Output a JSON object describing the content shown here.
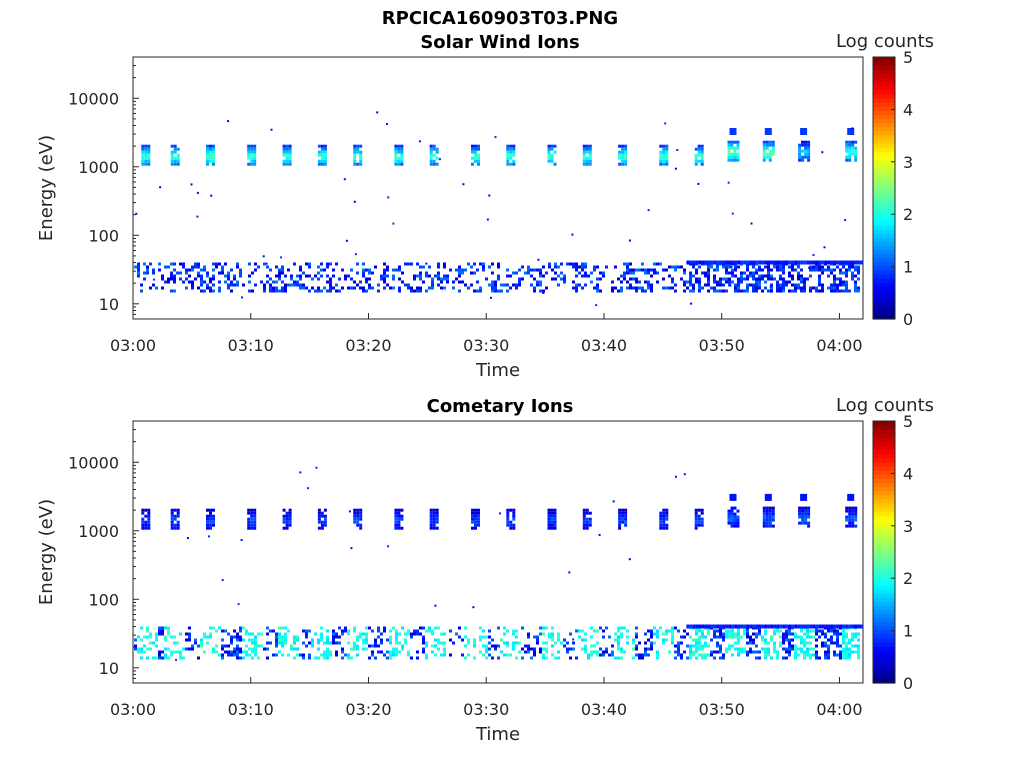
{
  "figure_title": "RPCICA160903T03.PNG",
  "colormap": [
    "#00007f",
    "#0000ff",
    "#007fff",
    "#00ffff",
    "#7fff7f",
    "#ffff00",
    "#ff7f00",
    "#ff0000",
    "#7f0000"
  ],
  "chart_data": [
    {
      "type": "heatmap",
      "title": "Solar Wind Ions",
      "xlabel": "Time",
      "ylabel": "Energy (eV)",
      "y_scale": "log",
      "xlim": [
        "03:00",
        "04:02"
      ],
      "ylim": [
        6,
        40000
      ],
      "x_ticks": [
        "03:00",
        "03:10",
        "03:20",
        "03:30",
        "03:40",
        "03:50",
        "04:00"
      ],
      "y_ticks": [
        {
          "value": 10,
          "label": "10"
        },
        {
          "value": 100,
          "label": "100"
        },
        {
          "value": 1000,
          "label": "1000"
        },
        {
          "value": 10000,
          "label": "10000"
        }
      ],
      "colorbar": {
        "label": "Log counts",
        "range": [
          0,
          5
        ],
        "ticks": [
          "0",
          "1",
          "2",
          "3",
          "4",
          "5"
        ]
      },
      "bursts": [
        {
          "time": "03:01",
          "energy": 1400,
          "log_counts": 2.0
        },
        {
          "time": "03:03.5",
          "energy": 1400,
          "log_counts": 2.0
        },
        {
          "time": "03:06.5",
          "energy": 1400,
          "log_counts": 2.2
        },
        {
          "time": "03:10",
          "energy": 1400,
          "log_counts": 2.0
        },
        {
          "time": "03:13",
          "energy": 1400,
          "log_counts": 2.0
        },
        {
          "time": "03:16",
          "energy": 1400,
          "log_counts": 2.0
        },
        {
          "time": "03:19",
          "energy": 1400,
          "log_counts": 2.0
        },
        {
          "time": "03:22.5",
          "energy": 1400,
          "log_counts": 2.0
        },
        {
          "time": "03:25.5",
          "energy": 1400,
          "log_counts": 2.0
        },
        {
          "time": "03:29",
          "energy": 1400,
          "log_counts": 2.0
        },
        {
          "time": "03:32",
          "energy": 1400,
          "log_counts": 2.0
        },
        {
          "time": "03:35.5",
          "energy": 1400,
          "log_counts": 2.0
        },
        {
          "time": "03:38.5",
          "energy": 1400,
          "log_counts": 2.0
        },
        {
          "time": "03:41.5",
          "energy": 1400,
          "log_counts": 2.0
        },
        {
          "time": "03:45",
          "energy": 1400,
          "log_counts": 2.0
        },
        {
          "time": "03:48",
          "energy": 1400,
          "log_counts": 2.0
        },
        {
          "time": "03:51",
          "energy": 1600,
          "log_counts": 2.3
        },
        {
          "time": "03:54",
          "energy": 1600,
          "log_counts": 2.3
        },
        {
          "time": "03:57",
          "energy": 1600,
          "log_counts": 1.5
        },
        {
          "time": "04:01",
          "energy": 1600,
          "log_counts": 2.0
        }
      ],
      "low_energy_band": {
        "energy_range": [
          15,
          40
        ],
        "log_counts": 0.8
      }
    },
    {
      "type": "heatmap",
      "title": "Cometary Ions",
      "xlabel": "Time",
      "ylabel": "Energy (eV)",
      "y_scale": "log",
      "xlim": [
        "03:00",
        "04:02"
      ],
      "ylim": [
        6,
        40000
      ],
      "x_ticks": [
        "03:00",
        "03:10",
        "03:20",
        "03:30",
        "03:40",
        "03:50",
        "04:00"
      ],
      "y_ticks": [
        {
          "value": 10,
          "label": "10"
        },
        {
          "value": 100,
          "label": "100"
        },
        {
          "value": 1000,
          "label": "1000"
        },
        {
          "value": 10000,
          "label": "10000"
        }
      ],
      "colorbar": {
        "label": "Log counts",
        "range": [
          0,
          5
        ],
        "ticks": [
          "0",
          "1",
          "2",
          "3",
          "4",
          "5"
        ]
      },
      "bursts": [
        {
          "time": "03:01",
          "energy": 1400,
          "log_counts": 0.9
        },
        {
          "time": "03:03.5",
          "energy": 1400,
          "log_counts": 0.9
        },
        {
          "time": "03:06.5",
          "energy": 1400,
          "log_counts": 0.9
        },
        {
          "time": "03:10",
          "energy": 1400,
          "log_counts": 0.9
        },
        {
          "time": "03:13",
          "energy": 1400,
          "log_counts": 0.9
        },
        {
          "time": "03:16",
          "energy": 1400,
          "log_counts": 0.9
        },
        {
          "time": "03:19",
          "energy": 1400,
          "log_counts": 0.9
        },
        {
          "time": "03:22.5",
          "energy": 1400,
          "log_counts": 0.9
        },
        {
          "time": "03:25.5",
          "energy": 1400,
          "log_counts": 0.9
        },
        {
          "time": "03:29",
          "energy": 1400,
          "log_counts": 0.9
        },
        {
          "time": "03:32",
          "energy": 1400,
          "log_counts": 0.9
        },
        {
          "time": "03:35.5",
          "energy": 1400,
          "log_counts": 0.9
        },
        {
          "time": "03:38.5",
          "energy": 1400,
          "log_counts": 0.9
        },
        {
          "time": "03:41.5",
          "energy": 1400,
          "log_counts": 0.9
        },
        {
          "time": "03:45",
          "energy": 1400,
          "log_counts": 0.9
        },
        {
          "time": "03:48",
          "energy": 1400,
          "log_counts": 0.9
        },
        {
          "time": "03:51",
          "energy": 1500,
          "log_counts": 1.0
        },
        {
          "time": "03:54",
          "energy": 1500,
          "log_counts": 1.0
        },
        {
          "time": "03:57",
          "energy": 1500,
          "log_counts": 1.0
        },
        {
          "time": "04:01",
          "energy": 1500,
          "log_counts": 1.0
        }
      ],
      "low_energy_band": {
        "energy_range": [
          14,
          40
        ],
        "log_counts": 1.8
      }
    }
  ]
}
